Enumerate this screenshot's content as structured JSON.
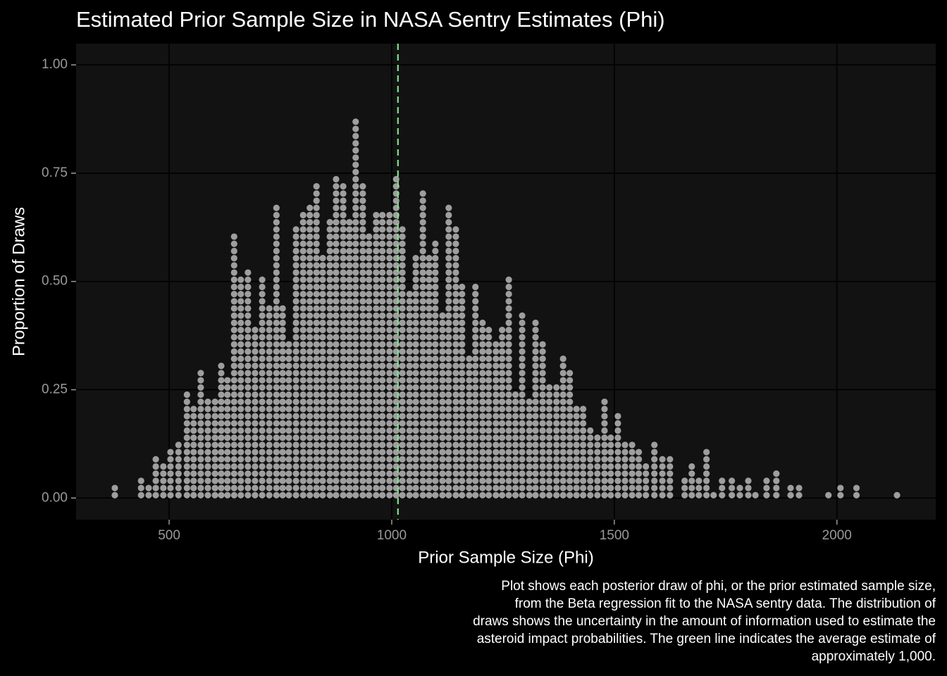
{
  "chart_data": {
    "type": "dotplot",
    "title": "Estimated Prior Sample Size in NASA Sentry Estimates (Phi)",
    "x_label": "Prior Sample Size (Phi)",
    "y_label": "Proportion of Draws",
    "caption": [
      "Plot shows each posterior draw of phi, or the prior estimated sample size,",
      "from the Beta regression fit to the NASA sentry data. The distribution of",
      "draws shows the uncertainty in the amount of information used to estimate the",
      "asteroid impact probabilities. The green line indicates the average estimate of",
      "approximately 1,000."
    ],
    "x": [
      378,
      437,
      454,
      470,
      487,
      503,
      521,
      540,
      555,
      571,
      587,
      603,
      617,
      631,
      646,
      661,
      677,
      693,
      709,
      725,
      741,
      755,
      769,
      785,
      801,
      816,
      831,
      845,
      861,
      875,
      891,
      905,
      919,
      935,
      949,
      965,
      979,
      995,
      1010,
      1024,
      1040,
      1054,
      1070,
      1084,
      1098,
      1114,
      1128,
      1144,
      1158,
      1174,
      1188,
      1204,
      1218,
      1234,
      1248,
      1263,
      1278,
      1293,
      1309,
      1323,
      1339,
      1354,
      1370,
      1385,
      1400,
      1415,
      1430,
      1446,
      1462,
      1478,
      1492,
      1508,
      1524,
      1540,
      1555,
      1571,
      1590,
      1608,
      1625,
      1658,
      1674,
      1690,
      1707,
      1723,
      1742,
      1764,
      1782,
      1801,
      1817,
      1842,
      1864,
      1896,
      1915,
      1981,
      2008,
      2044,
      2135
    ],
    "values": [
      0.025,
      0.04,
      0.025,
      0.09,
      0.075,
      0.105,
      0.125,
      0.25,
      0.21,
      0.3,
      0.23,
      0.235,
      0.315,
      0.28,
      0.605,
      0.51,
      0.53,
      0.4,
      0.51,
      0.45,
      0.67,
      0.45,
      0.36,
      0.62,
      0.655,
      0.67,
      0.72,
      0.56,
      0.64,
      0.75,
      0.73,
      0.65,
      0.875,
      0.73,
      0.61,
      0.655,
      0.655,
      0.655,
      0.75,
      0.62,
      0.47,
      0.56,
      0.705,
      0.56,
      0.59,
      0.435,
      0.67,
      0.62,
      0.495,
      0.325,
      0.49,
      0.415,
      0.395,
      0.36,
      0.4,
      0.51,
      0.245,
      0.43,
      0.225,
      0.415,
      0.36,
      0.27,
      0.27,
      0.33,
      0.29,
      0.21,
      0.22,
      0.17,
      0.145,
      0.235,
      0.15,
      0.2,
      0.125,
      0.135,
      0.12,
      0.085,
      0.125,
      0.09,
      0.09,
      0.045,
      0.075,
      0.045,
      0.11,
      0.01,
      0.045,
      0.045,
      0.03,
      0.045,
      0.01,
      0.045,
      0.055,
      0.025,
      0.025,
      0.01,
      0.025,
      0.025,
      0.01
    ],
    "color": "#9e9e9e",
    "reference_line": {
      "value": 1014,
      "color": "#7ee08a"
    },
    "xlim": [
      291,
      2222
    ],
    "ylim": [
      -0.05,
      1.049
    ],
    "xticks": [
      500,
      1000,
      1500,
      2000
    ],
    "yticks": [
      {
        "value": 0,
        "label": "0.00"
      },
      {
        "value": 0.25,
        "label": "0.25"
      },
      {
        "value": 0.5,
        "label": "0.50"
      },
      {
        "value": 0.75,
        "label": "0.75"
      },
      {
        "value": 1,
        "label": "1.00"
      }
    ],
    "grid": true
  }
}
